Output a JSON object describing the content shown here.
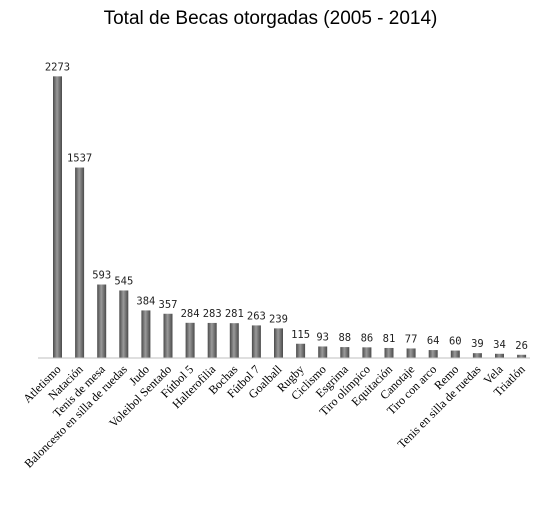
{
  "chart_data": {
    "type": "bar",
    "title": "Total de Becas otorgadas (2005 - 2014)",
    "categories": [
      "Atletismo",
      "Natación",
      "Tenis de mesa",
      "Baloncesto en silla de ruedas",
      "Judo",
      "Voleibol Sentado",
      "Fútbol 5",
      "Halterofilia",
      "Bochas",
      "Fútbol 7",
      "Goalball",
      "Rugby",
      "Ciclismo",
      "Esgrima",
      "Tiro olímpico",
      "Equitación",
      "Canotaje",
      "Tiro con arco",
      "Remo",
      "Tenis en silla de ruedas",
      "Vela",
      "Triatlón"
    ],
    "values": [
      2273,
      1537,
      593,
      545,
      384,
      357,
      284,
      283,
      281,
      263,
      239,
      115,
      93,
      88,
      86,
      81,
      77,
      64,
      60,
      39,
      34,
      26
    ],
    "value_labels": [
      "2273",
      "1537",
      "593",
      "545",
      "384",
      "357",
      "284",
      "283",
      "281",
      "263",
      "239",
      "115",
      "93",
      "88",
      "86",
      "81",
      "77",
      "64",
      "60",
      "39",
      "34",
      "26"
    ],
    "ylim": [
      0,
      2300
    ],
    "grid": false,
    "legend": "none",
    "bar_color": "#4a4a4a",
    "bar_highlight_color": "#9a9a9a"
  }
}
